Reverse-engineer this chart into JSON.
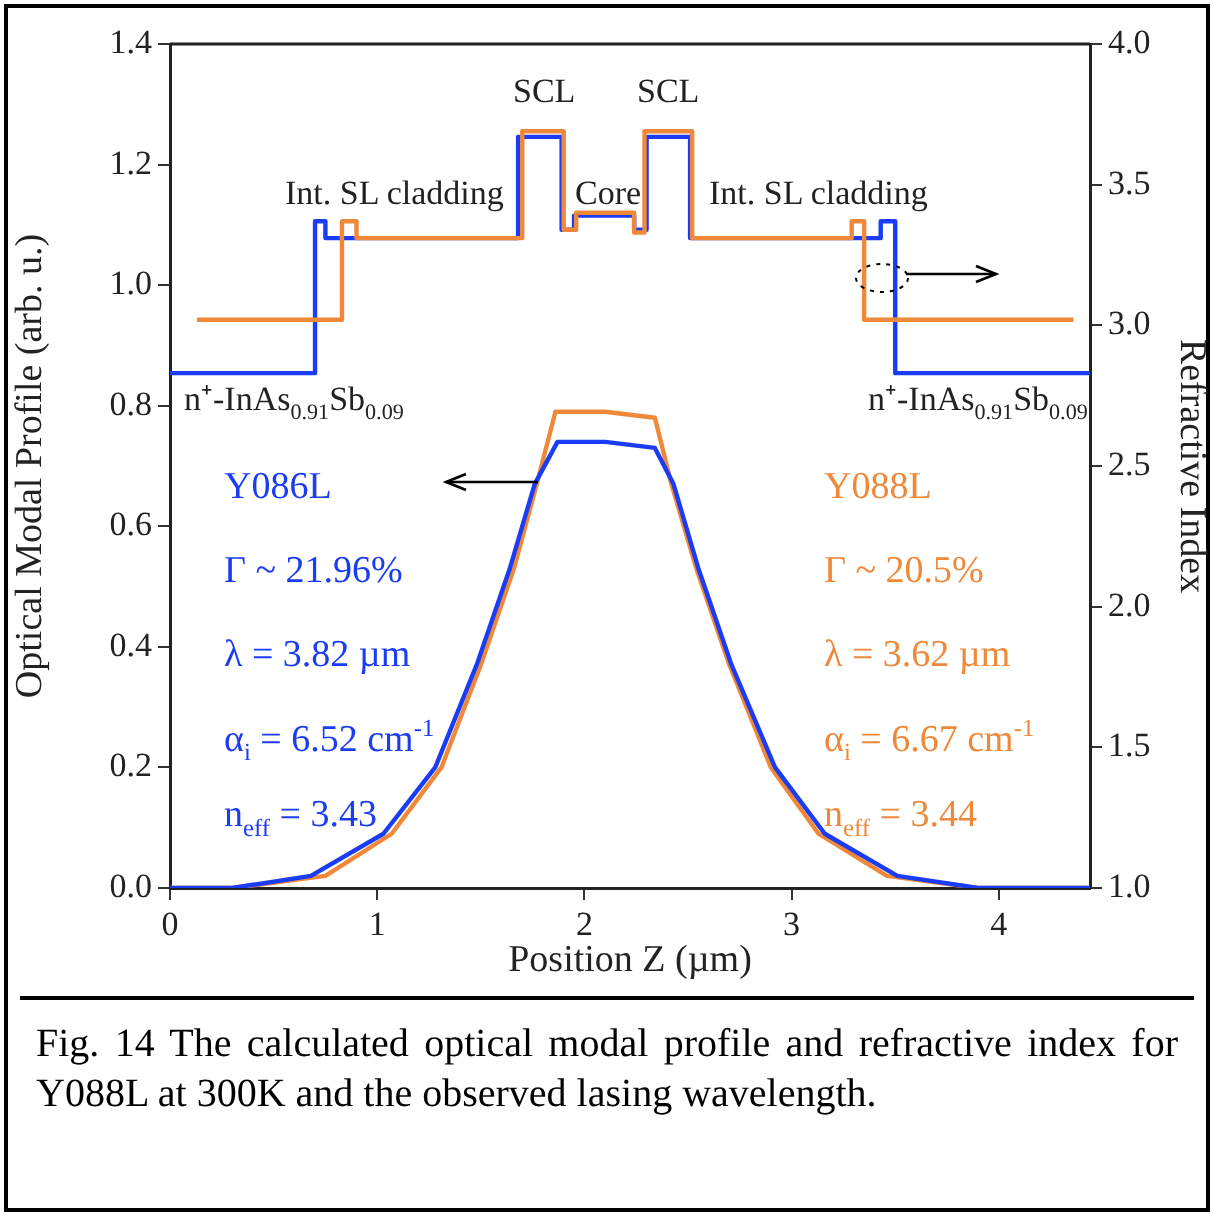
{
  "chart_data": {
    "type": "line",
    "xlabel": "Position Z (µm)",
    "ylabel": "Optical Modal Profile (arb. u.)",
    "y2label": "Refractive Index",
    "xlim": [
      0,
      4.44
    ],
    "xticks": [
      0,
      1,
      2,
      3,
      4
    ],
    "ylim": [
      0,
      1.4
    ],
    "yticks": [
      {
        "value": 0,
        "label": "0.0"
      },
      {
        "value": 0.2,
        "label": "0.2"
      },
      {
        "value": 0.4,
        "label": "0.4"
      },
      {
        "value": 0.6,
        "label": "0.6"
      },
      {
        "value": 0.8,
        "label": "0.8"
      },
      {
        "value": 1,
        "label": "1.0"
      },
      {
        "value": 1.2,
        "label": "1.2"
      },
      {
        "value": 1.4,
        "label": "1.4"
      }
    ],
    "y2lim": [
      1,
      4
    ],
    "y2ticks": [
      {
        "value": 1,
        "label": "1.0"
      },
      {
        "value": 1.5,
        "label": "1.5"
      },
      {
        "value": 2,
        "label": "2.0"
      },
      {
        "value": 2.5,
        "label": "2.5"
      },
      {
        "value": 3,
        "label": "3.0"
      },
      {
        "value": 3.5,
        "label": "3.5"
      },
      {
        "value": 4,
        "label": "4.0"
      }
    ],
    "grid": false,
    "legend": false,
    "marker": "none",
    "line_style": "solid",
    "series": [
      {
        "name": "Y086L",
        "color": "#1a3cf5",
        "x": [
          0,
          0.3,
          0.68,
          1.03,
          1.28,
          1.48,
          1.64,
          1.76,
          1.87,
          2.1,
          2.34,
          2.43,
          2.55,
          2.71,
          2.92,
          3.16,
          3.51,
          3.9,
          4.44
        ],
        "values": [
          0,
          0,
          0.02,
          0.09,
          0.2,
          0.37,
          0.53,
          0.67,
          0.74,
          0.74,
          0.73,
          0.67,
          0.53,
          0.37,
          0.2,
          0.09,
          0.02,
          0,
          0
        ]
      },
      {
        "name": "Y088L",
        "color": "#f0883a",
        "x": [
          0,
          0.3,
          0.75,
          1.07,
          1.31,
          1.5,
          1.66,
          1.77,
          1.86,
          2.1,
          2.34,
          2.42,
          2.54,
          2.7,
          2.9,
          3.13,
          3.46,
          3.9,
          4.44
        ],
        "values": [
          0,
          0,
          0.02,
          0.09,
          0.2,
          0.37,
          0.53,
          0.67,
          0.79,
          0.79,
          0.78,
          0.67,
          0.53,
          0.37,
          0.2,
          0.09,
          0.02,
          0,
          0
        ]
      },
      {
        "type": "step",
        "axis": "y2",
        "color": "#f0883a",
        "x": [
          0.13,
          0.83,
          0.9,
          1.7,
          1.9,
          1.96,
          2.24,
          2.29,
          2.52,
          3.29,
          3.35,
          4.36
        ],
        "values": [
          3.02,
          3.37,
          3.31,
          3.69,
          3.34,
          3.4,
          3.33,
          3.69,
          3.31,
          3.37,
          3.02,
          3.02
        ]
      },
      {
        "type": "step",
        "axis": "y2",
        "color": "#1a3cf5",
        "x": [
          0,
          0.7,
          0.75,
          1.68,
          1.89,
          1.95,
          2.24,
          2.3,
          2.51,
          3.43,
          3.5,
          4.44
        ],
        "values": [
          2.83,
          3.37,
          3.31,
          3.67,
          3.34,
          3.39,
          3.34,
          3.67,
          3.31,
          3.37,
          2.83,
          2.83
        ]
      }
    ],
    "annotations": [
      "SCL",
      "SCL",
      "Core",
      "Int. SL cladding",
      "Int. SL cladding",
      "n⁺-InAs$_{0.91}$Sb$_{0.09}$",
      "n⁺-InAs$_{0.91}$Sb$_{0.09}$",
      "Γ ~ 21.96%",
      "λ = 3.82 µm",
      "α$_{i}$ = 6.52 cm$^{-1}$",
      "n$_{eff}$ = 3.43",
      "Γ ~ 20.5%",
      "λ = 3.62 µm",
      "α$_{i}$ = 6.67 cm$^{-1}$",
      "n$_{eff}$ = 3.44",
      "Fig. 14 The calculated optical modal profile and refractive index for Y088L at 300K and the observed lasing wavelength."
    ]
  }
}
